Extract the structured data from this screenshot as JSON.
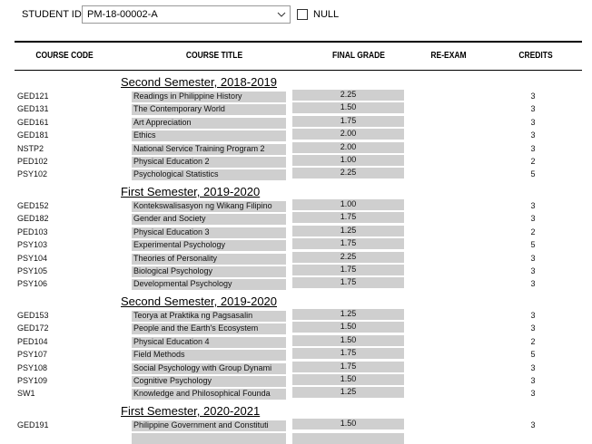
{
  "student": {
    "label": "STUDENT ID:",
    "value": "PM-18-00002-A",
    "null_label": "NULL"
  },
  "table": {
    "columns": [
      "COURSE CODE",
      "COURSE TITLE",
      "FINAL GRADE",
      "RE-EXAM",
      "CREDITS"
    ],
    "sections": [
      {
        "heading": "Second Semester, 2018-2019",
        "rows": [
          {
            "code": "GED121",
            "title": "Readings in Philippine History",
            "grade": "2.25",
            "credits": 3
          },
          {
            "code": "GED131",
            "title": "The Contemporary World",
            "grade": "1.50",
            "credits": 3
          },
          {
            "code": "GED161",
            "title": "Art Appreciation",
            "grade": "1.75",
            "credits": 3
          },
          {
            "code": "GED181",
            "title": "Ethics",
            "grade": "2.00",
            "credits": 3
          },
          {
            "code": "NSTP2",
            "title": "National Service Training Program 2",
            "grade": "2.00",
            "credits": 3
          },
          {
            "code": "PED102",
            "title": "Physical Education 2",
            "grade": "1.00",
            "credits": 2
          },
          {
            "code": "PSY102",
            "title": "Psychological Statistics",
            "grade": "2.25",
            "credits": 5
          }
        ]
      },
      {
        "heading": "First Semester, 2019-2020",
        "rows": [
          {
            "code": "GED152",
            "title": "Kontekswalisasyon ng Wikang Filipino",
            "grade": "1.00",
            "credits": 3
          },
          {
            "code": "GED182",
            "title": "Gender and Society",
            "grade": "1.75",
            "credits": 3
          },
          {
            "code": "PED103",
            "title": "Physical Education 3",
            "grade": "1.25",
            "credits": 2
          },
          {
            "code": "PSY103",
            "title": "Experimental Psychology",
            "grade": "1.75",
            "credits": 5
          },
          {
            "code": "PSY104",
            "title": "Theories of Personality",
            "grade": "2.25",
            "credits": 3
          },
          {
            "code": "PSY105",
            "title": "Biological Psychology",
            "grade": "1.75",
            "credits": 3
          },
          {
            "code": "PSY106",
            "title": "Developmental Psychology",
            "grade": "1.75",
            "credits": 3
          }
        ]
      },
      {
        "heading": "Second Semester, 2019-2020",
        "rows": [
          {
            "code": "GED153",
            "title": "Teorya at Praktika ng Pagsasalin",
            "grade": "1.25",
            "credits": 3
          },
          {
            "code": "GED172",
            "title": "People and the Earth's Ecosystem",
            "grade": "1.50",
            "credits": 3
          },
          {
            "code": "PED104",
            "title": "Physical Education 4",
            "grade": "1.50",
            "credits": 2
          },
          {
            "code": "PSY107",
            "title": "Field Methods",
            "grade": "1.75",
            "credits": 5
          },
          {
            "code": "PSY108",
            "title": "Social Psychology with Group Dynami",
            "grade": "1.75",
            "credits": 3
          },
          {
            "code": "PSY109",
            "title": "Cognitive Psychology",
            "grade": "1.50",
            "credits": 3
          },
          {
            "code": "SW1",
            "title": "Knowledge and Philosophical Founda",
            "grade": "1.25",
            "credits": 3
          }
        ]
      },
      {
        "heading": "First Semester, 2020-2021",
        "rows": [
          {
            "code": "GED191",
            "title": "Philippine Government and Constituti",
            "grade": "1.50",
            "credits": 3
          }
        ]
      }
    ]
  }
}
